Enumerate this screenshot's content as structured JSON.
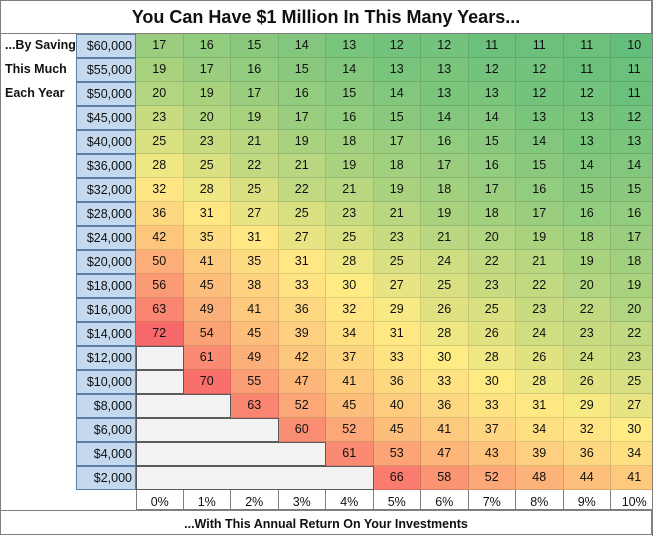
{
  "title": "You Can Have $1 Million In This Many Years...",
  "side_labels": [
    "...By Saving",
    "This Much",
    "Each Year"
  ],
  "footer": "...With This Annual Return On Your Investments",
  "chart_data": {
    "type": "heatmap",
    "title": "You Can Have $1 Million In This Many Years...",
    "row_label": "...By Saving This Much Each Year",
    "col_label": "...With This Annual Return On Your Investments",
    "columns": [
      "0%",
      "1%",
      "2%",
      "3%",
      "4%",
      "5%",
      "6%",
      "7%",
      "8%",
      "9%",
      "10%"
    ],
    "rows": [
      "$60,000",
      "$55,000",
      "$50,000",
      "$45,000",
      "$40,000",
      "$36,000",
      "$32,000",
      "$28,000",
      "$24,000",
      "$20,000",
      "$18,000",
      "$16,000",
      "$14,000",
      "$12,000",
      "$10,000",
      "$8,000",
      "$6,000",
      "$4,000",
      "$2,000"
    ],
    "values": [
      [
        17,
        16,
        15,
        14,
        13,
        12,
        12,
        11,
        11,
        11,
        10
      ],
      [
        19,
        17,
        16,
        15,
        14,
        13,
        13,
        12,
        12,
        11,
        11
      ],
      [
        20,
        19,
        17,
        16,
        15,
        14,
        13,
        13,
        12,
        12,
        11
      ],
      [
        23,
        20,
        19,
        17,
        16,
        15,
        14,
        14,
        13,
        13,
        12
      ],
      [
        25,
        23,
        21,
        19,
        18,
        17,
        16,
        15,
        14,
        13,
        13
      ],
      [
        28,
        25,
        22,
        21,
        19,
        18,
        17,
        16,
        15,
        14,
        14
      ],
      [
        32,
        28,
        25,
        22,
        21,
        19,
        18,
        17,
        16,
        15,
        15
      ],
      [
        36,
        31,
        27,
        25,
        23,
        21,
        19,
        18,
        17,
        16,
        16
      ],
      [
        42,
        35,
        31,
        27,
        25,
        23,
        21,
        20,
        19,
        18,
        17
      ],
      [
        50,
        41,
        35,
        31,
        28,
        25,
        24,
        22,
        21,
        19,
        18
      ],
      [
        56,
        45,
        38,
        33,
        30,
        27,
        25,
        23,
        22,
        20,
        19
      ],
      [
        63,
        49,
        41,
        36,
        32,
        29,
        26,
        25,
        23,
        22,
        20
      ],
      [
        72,
        54,
        45,
        39,
        34,
        31,
        28,
        26,
        24,
        23,
        22
      ],
      [
        null,
        61,
        49,
        42,
        37,
        33,
        30,
        28,
        26,
        24,
        23
      ],
      [
        null,
        70,
        55,
        47,
        41,
        36,
        33,
        30,
        28,
        26,
        25
      ],
      [
        null,
        null,
        63,
        52,
        45,
        40,
        36,
        33,
        31,
        29,
        27
      ],
      [
        null,
        null,
        null,
        60,
        52,
        45,
        41,
        37,
        34,
        32,
        30
      ],
      [
        null,
        null,
        null,
        null,
        61,
        53,
        47,
        43,
        39,
        36,
        34
      ],
      [
        null,
        null,
        null,
        null,
        null,
        66,
        58,
        52,
        48,
        44,
        41
      ]
    ],
    "color_scale": {
      "low": "#63be7b",
      "mid": "#ffeb84",
      "high": "#f8696b"
    }
  }
}
